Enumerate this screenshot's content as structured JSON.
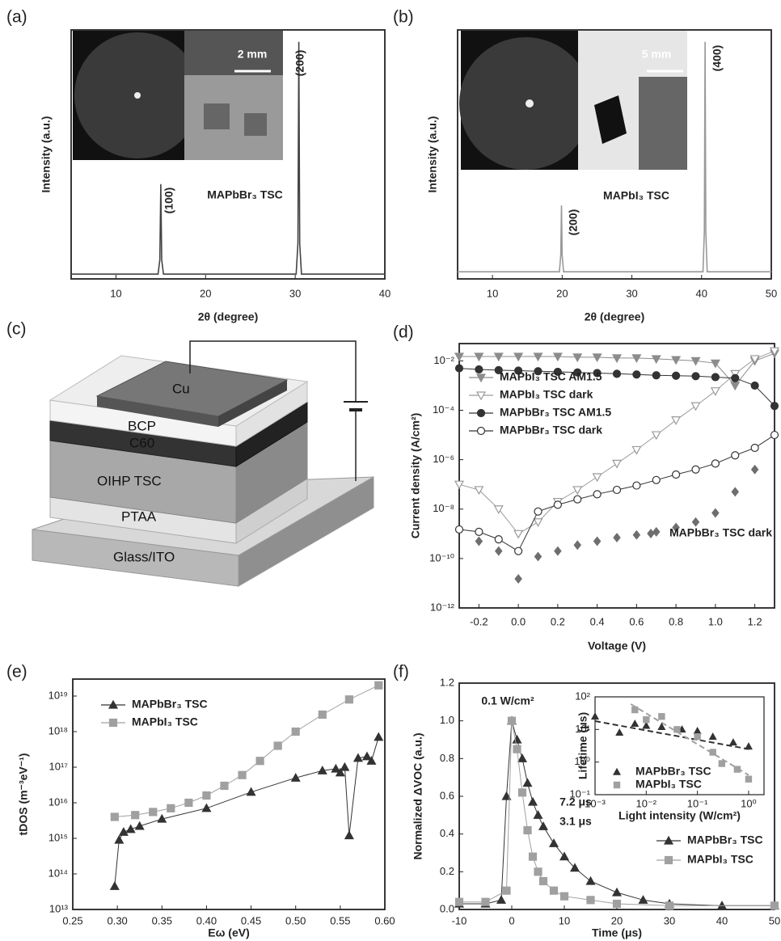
{
  "chart_data": [
    {
      "type": "line",
      "panel": "(a)",
      "xlabel": "2θ (degree)",
      "ylabel": "Intensity (a.u.)",
      "xlim": [
        5,
        40
      ],
      "xticks": [
        10,
        20,
        30,
        40
      ],
      "ylim": [
        0,
        105
      ],
      "annotations": [
        "(100)",
        "(200)",
        "MAPbBr₃ TSC",
        "2 mm"
      ],
      "series": [
        {
          "color": "#444444",
          "marker": "none",
          "x": [
            5,
            10,
            14.7,
            14.9,
            15.0,
            15.1,
            15.3,
            20,
            25,
            30.1,
            30.3,
            30.4,
            30.5,
            30.7,
            35,
            40
          ],
          "values": [
            2,
            2,
            2,
            8,
            40,
            8,
            2,
            2,
            2,
            2,
            15,
            100,
            15,
            2,
            2,
            2
          ]
        }
      ]
    },
    {
      "type": "line",
      "panel": "(b)",
      "xlabel": "2θ (degree)",
      "ylabel": "Intensity (a.u.)",
      "xlim": [
        5,
        50
      ],
      "xticks": [
        10,
        20,
        30,
        40,
        50
      ],
      "ylim": [
        0,
        105
      ],
      "annotations": [
        "(200)",
        "(400)",
        "MAPbI₃ TSC",
        "5 mm"
      ],
      "series": [
        {
          "color": "#999999",
          "marker": "none",
          "x": [
            5,
            10,
            19.6,
            19.8,
            19.9,
            20.0,
            20.2,
            30,
            40.2,
            40.4,
            40.5,
            40.6,
            40.8,
            45,
            50
          ],
          "values": [
            3,
            3,
            3,
            10,
            31,
            10,
            3,
            3,
            3,
            20,
            100,
            20,
            3,
            3,
            3
          ]
        }
      ]
    },
    {
      "type": "line",
      "panel": "(d)",
      "xlabel": "Voltage (V)",
      "ylabel": "Current density (A/cm²)",
      "log_y": true,
      "xlim": [
        -0.3,
        1.3
      ],
      "ylim": [
        1e-12,
        0.05
      ],
      "xticks": [
        -0.2,
        {
          "value": 0,
          "label": "0.0"
        },
        0.2,
        0.4,
        0.6,
        0.8,
        {
          "value": 1,
          "label": "1.0"
        },
        1.2
      ],
      "yticks": [
        {
          "value": 1e-12,
          "label": "10⁻¹²"
        },
        {
          "value": 1e-10,
          "label": "10⁻¹⁰"
        },
        {
          "value": 1e-08,
          "label": "10⁻⁸"
        },
        {
          "value": 1e-06,
          "label": "10⁻⁶"
        },
        {
          "value": 0.0001,
          "label": "10⁻⁴"
        },
        {
          "value": 0.01,
          "label": "10⁻²"
        }
      ],
      "legend": "upper left",
      "x": [
        -0.3,
        -0.2,
        -0.1,
        0,
        0.1,
        0.2,
        0.3,
        0.4,
        0.5,
        0.6,
        0.7,
        0.8,
        0.9,
        1.0,
        1.1,
        1.2,
        1.3
      ],
      "series": [
        {
          "name": "MAPbI₃ TSC AM1.5",
          "color": "#8c8c8c",
          "marker": "triangle-down",
          "values": [
            0.015,
            0.015,
            0.015,
            0.015,
            0.015,
            0.015,
            0.014,
            0.014,
            0.013,
            0.013,
            0.012,
            0.011,
            0.01,
            0.008,
            0.001,
            0.01,
            0.02
          ]
        },
        {
          "name": "MAPbI₃ TSC dark",
          "color": "#9a9a9a",
          "marker": "triangle-down-open",
          "values": [
            1e-07,
            6e-08,
            1e-08,
            1e-09,
            3e-09,
            2e-08,
            6e-08,
            2e-07,
            7e-07,
            2.5e-06,
            1e-05,
            4e-05,
            0.00015,
            0.0006,
            0.003,
            0.012,
            0.025
          ]
        },
        {
          "name": "MAPbBr₃ TSC AM1.5",
          "color": "#333333",
          "marker": "circle",
          "values": [
            0.005,
            0.0045,
            0.0042,
            0.004,
            0.0038,
            0.0036,
            0.0034,
            0.0032,
            0.003,
            0.0028,
            0.0026,
            0.0025,
            0.0024,
            0.0022,
            0.002,
            0.001,
            0.00015
          ]
        },
        {
          "name": "MAPbBr₃ TSC dark",
          "color": "#333333",
          "marker": "circle-open",
          "values": [
            1.5e-09,
            1.2e-09,
            6e-10,
            2e-10,
            8e-09,
            1.5e-08,
            2.5e-08,
            4e-08,
            6e-08,
            9e-08,
            1.5e-07,
            2.5e-07,
            4e-07,
            7e-07,
            1.5e-06,
            3e-06,
            1e-05
          ]
        },
        {
          "name": "MAPbBr₃ TSC dark",
          "color": "#6e6e6e",
          "marker": "diamond",
          "line": false,
          "legend": "lower right",
          "x": [
            -0.2,
            -0.1,
            0,
            0.1,
            0.2,
            0.3,
            0.4,
            0.5,
            0.6,
            0.7,
            0.8,
            0.9,
            1.0,
            1.1,
            1.2
          ],
          "values": [
            5e-10,
            2e-10,
            1.5e-11,
            1.2e-10,
            2e-10,
            3.5e-10,
            5e-10,
            7e-10,
            9e-10,
            1.2e-09,
            1.8e-09,
            3e-09,
            7e-09,
            5e-08,
            4e-07
          ]
        }
      ]
    },
    {
      "type": "line",
      "panel": "(e)",
      "xlabel": "Eω (eV)",
      "ylabel": "tDOS (m⁻³eV⁻¹)",
      "log_y": true,
      "xlim": [
        0.25,
        0.6
      ],
      "ylim": [
        10000000000000.0,
        3e+19
      ],
      "xticks": [
        0.25,
        {
          "value": 0.3,
          "label": "0.30"
        },
        0.35,
        {
          "value": 0.4,
          "label": "0.40"
        },
        0.45,
        {
          "value": 0.5,
          "label": "0.50"
        },
        0.55,
        {
          "value": 0.6,
          "label": "0.60"
        }
      ],
      "yticks": [
        {
          "value": 10000000000000.0,
          "label": "10¹³"
        },
        {
          "value": 100000000000000.0,
          "label": "10¹⁴"
        },
        {
          "value": 1000000000000000.0,
          "label": "10¹⁵"
        },
        {
          "value": 1e+16,
          "label": "10¹⁶"
        },
        {
          "value": 1e+17,
          "label": "10¹⁷"
        },
        {
          "value": 1e+18,
          "label": "10¹⁸"
        },
        {
          "value": 1e+19,
          "label": "10¹⁹"
        }
      ],
      "legend": "upper left",
      "series": [
        {
          "name": "MAPbBr₃ TSC",
          "color": "#333333",
          "marker": "triangle",
          "x": [
            0.297,
            0.302,
            0.307,
            0.315,
            0.325,
            0.35,
            0.4,
            0.45,
            0.5,
            0.53,
            0.545,
            0.55,
            0.555,
            0.56,
            0.57,
            0.58,
            0.585,
            0.593
          ],
          "values": [
            45000000000000.0,
            900000000000000.0,
            1500000000000000.0,
            1800000000000000.0,
            2200000000000000.0,
            3500000000000000.0,
            7000000000000000.0,
            2e+16,
            5e+16,
            8e+16,
            9e+16,
            7e+16,
            1e+17,
            1200000000000000.0,
            1.8e+17,
            2e+17,
            1.5e+17,
            7e+17
          ]
        },
        {
          "name": "MAPbI₃ TSC",
          "color": "#a0a0a0",
          "marker": "square",
          "x": [
            0.297,
            0.32,
            0.34,
            0.36,
            0.38,
            0.4,
            0.42,
            0.44,
            0.46,
            0.48,
            0.5,
            0.53,
            0.56,
            0.593
          ],
          "values": [
            4000000000000000.0,
            4500000000000000.0,
            5500000000000000.0,
            7000000000000000.0,
            1e+16,
            1.6e+16,
            3e+16,
            6e+16,
            1.5e+17,
            4e+17,
            1e+18,
            3e+18,
            8e+18,
            2e+19
          ]
        }
      ]
    },
    {
      "type": "line",
      "panel": "(f)",
      "xlabel": "Time (μs)",
      "ylabel": "Normalized ΔVOC (a.u.)",
      "xlim": [
        -10,
        50
      ],
      "ylim": [
        0,
        1.2
      ],
      "xticks": [
        -10,
        0,
        10,
        20,
        30,
        40,
        50
      ],
      "yticks": [
        {
          "value": 0,
          "label": "0.0"
        },
        0.2,
        0.4,
        0.6,
        0.8,
        {
          "value": 1,
          "label": "1.0"
        },
        1.2
      ],
      "legend": "lower right",
      "annotations": [
        "0.1 W/cm²",
        "7.2 μs",
        "3.1 μs"
      ],
      "series": [
        {
          "name": "MAPbBr₃ TSC",
          "color": "#333333",
          "marker": "triangle",
          "x": [
            -10,
            -5,
            -2,
            -1,
            0,
            1,
            2,
            3,
            4,
            5,
            6,
            8,
            10,
            12,
            15,
            20,
            25,
            30,
            40,
            50
          ],
          "values": [
            0.03,
            0.03,
            0.05,
            0.6,
            1.0,
            0.9,
            0.8,
            0.67,
            0.57,
            0.5,
            0.44,
            0.35,
            0.28,
            0.22,
            0.15,
            0.09,
            0.05,
            0.03,
            0.02,
            0.02
          ]
        },
        {
          "name": "MAPbI₃ TSC",
          "color": "#a0a0a0",
          "marker": "square",
          "x": [
            -10,
            -5,
            -1,
            0,
            1,
            2,
            3,
            4,
            5,
            6,
            8,
            10,
            15,
            20,
            30,
            50
          ],
          "values": [
            0.04,
            0.04,
            0.1,
            1.0,
            0.85,
            0.62,
            0.42,
            0.28,
            0.2,
            0.15,
            0.1,
            0.07,
            0.05,
            0.03,
            0.02,
            0.02
          ]
        }
      ]
    },
    {
      "type": "scatter",
      "xlabel": "Light intensity (W/cm²)",
      "ylabel": "Lifetime (μs)",
      "log_x": true,
      "log_y": true,
      "xlim": [
        0.001,
        2
      ],
      "ylim": [
        0.1,
        100
      ],
      "xticks": [
        {
          "value": 0.001,
          "label": "10⁻³"
        },
        {
          "value": 0.01,
          "label": "10⁻²"
        },
        {
          "value": 0.1,
          "label": "10⁻¹"
        },
        {
          "value": 1,
          "label": "10⁰"
        }
      ],
      "yticks": [
        {
          "value": 0.1,
          "label": "10⁻¹"
        },
        {
          "value": 1,
          "label": "10⁰"
        },
        {
          "value": 10,
          "label": "10¹"
        },
        {
          "value": 100,
          "label": "10²"
        }
      ],
      "legend": "lower left",
      "series": [
        {
          "name": "MAPbBr₃ TSC",
          "color": "#333333",
          "marker": "triangle",
          "line": false,
          "x": [
            0.001,
            0.003,
            0.006,
            0.01,
            0.02,
            0.05,
            0.1,
            0.2,
            0.5,
            1
          ],
          "values": [
            25,
            8,
            15,
            13,
            12,
            10,
            9,
            6,
            4,
            3
          ]
        },
        {
          "name": "MAPbI₃ TSC",
          "color": "#a0a0a0",
          "marker": "square",
          "line": false,
          "x": [
            0.006,
            0.01,
            0.02,
            0.04,
            0.1,
            0.2,
            0.3,
            0.6,
            1
          ],
          "values": [
            40,
            20,
            25,
            10,
            6,
            2,
            0.9,
            0.6,
            0.3
          ]
        }
      ],
      "fits": [
        {
          "color": "#333333",
          "x": [
            0.001,
            1
          ],
          "values": [
            18,
            2.5
          ]
        },
        {
          "color": "#a0a0a0",
          "x": [
            0.005,
            1
          ],
          "values": [
            60,
            0.4
          ]
        }
      ]
    }
  ],
  "diagram": {
    "panel": "(c)",
    "layers": [
      "Cu",
      "BCP",
      "C60",
      "OIHP TSC",
      "PTAA",
      "Glass/ITO"
    ]
  }
}
